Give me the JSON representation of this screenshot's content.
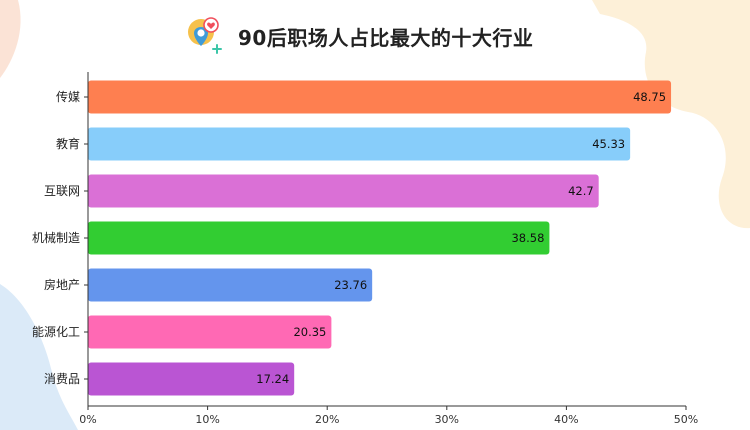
{
  "title": "90后职场人占比最大的十大行业",
  "colors": {
    "blob_left": "#fbe3d6",
    "blob_right": "#fdf0d8",
    "blob_bottom": "#dbeaf8",
    "axis": "#333333"
  },
  "icons": {
    "title": "location-pin-heart-icon"
  },
  "chart_data": {
    "type": "bar",
    "orientation": "horizontal",
    "categories": [
      "传媒",
      "教育",
      "互联网",
      "机械制造",
      "房地产",
      "能源化工",
      "消费品"
    ],
    "values": [
      48.75,
      45.33,
      42.7,
      38.58,
      23.76,
      20.35,
      17.24
    ],
    "value_labels": [
      "48.75",
      "45.33",
      "42.7",
      "38.58",
      "23.76",
      "20.35",
      "17.24"
    ],
    "colors": [
      "#fe7f50",
      "#87cdfa",
      "#da70d6",
      "#32cd32",
      "#6495ed",
      "#ff69b4",
      "#ba55d3"
    ],
    "xlim": [
      0,
      50
    ],
    "xticks": [
      0,
      10,
      20,
      30,
      40,
      50
    ],
    "xtick_labels": [
      "0%",
      "10%",
      "20%",
      "30%",
      "40%",
      "50%"
    ],
    "grid": false,
    "legend": "none"
  }
}
